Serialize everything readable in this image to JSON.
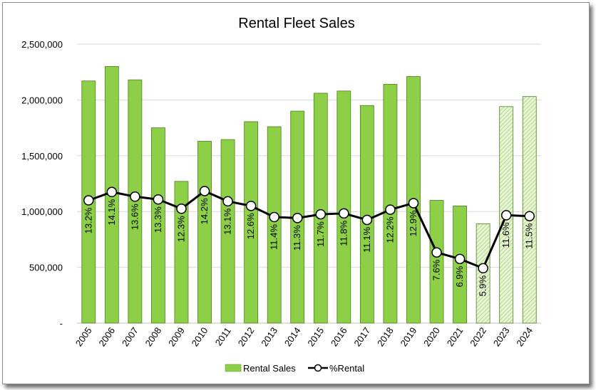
{
  "chart_data": {
    "type": "bar",
    "title": "Rental Fleet Sales",
    "categories": [
      "2005",
      "2006",
      "2007",
      "2008",
      "2009",
      "2010",
      "2011",
      "2012",
      "2013",
      "2014",
      "2015",
      "2016",
      "2017",
      "2018",
      "2019",
      "2020",
      "2021",
      "2022",
      "2023",
      "2024"
    ],
    "series": [
      {
        "name": "Rental Sales",
        "type": "bar",
        "color": "#8dd048",
        "forecast_color": "#e8f3d8",
        "values": [
          2170000,
          2300000,
          2180000,
          1750000,
          1270000,
          1630000,
          1645000,
          1805000,
          1760000,
          1900000,
          2060000,
          2080000,
          1950000,
          2140000,
          2210000,
          1100000,
          1050000,
          890000,
          1940000,
          2030000
        ],
        "forecast_categories": [
          "2022",
          "2023",
          "2024"
        ]
      },
      {
        "name": "%Rental",
        "type": "line",
        "color": "#000000",
        "values": [
          13.2,
          14.1,
          13.6,
          13.3,
          12.3,
          14.2,
          13.1,
          12.6,
          11.4,
          11.3,
          11.7,
          11.8,
          11.1,
          12.2,
          12.9,
          7.6,
          6.9,
          5.9,
          11.6,
          11.5
        ],
        "labels": [
          "13.2%",
          "14.1%",
          "13.6%",
          "13.3%",
          "12.3%",
          "14.2%",
          "13.1%",
          "12.6%",
          "11.4%",
          "11.3%",
          "11.7%",
          "11.8%",
          "11.1%",
          "12.2%",
          "12.9%",
          "7.6%",
          "6.9%",
          "5.9%",
          "11.6%",
          "11.5%"
        ]
      }
    ],
    "ylim": [
      0,
      2500000
    ],
    "yticks": [
      0,
      500000,
      1000000,
      1500000,
      2000000,
      2500000
    ],
    "ytick_labels": [
      "-",
      "500,000",
      "1,000,000",
      "1,500,000",
      "2,000,000",
      "2,500,000"
    ],
    "line_scale": {
      "pct_per_million": 12
    },
    "grid": true,
    "legend_position": "bottom"
  }
}
